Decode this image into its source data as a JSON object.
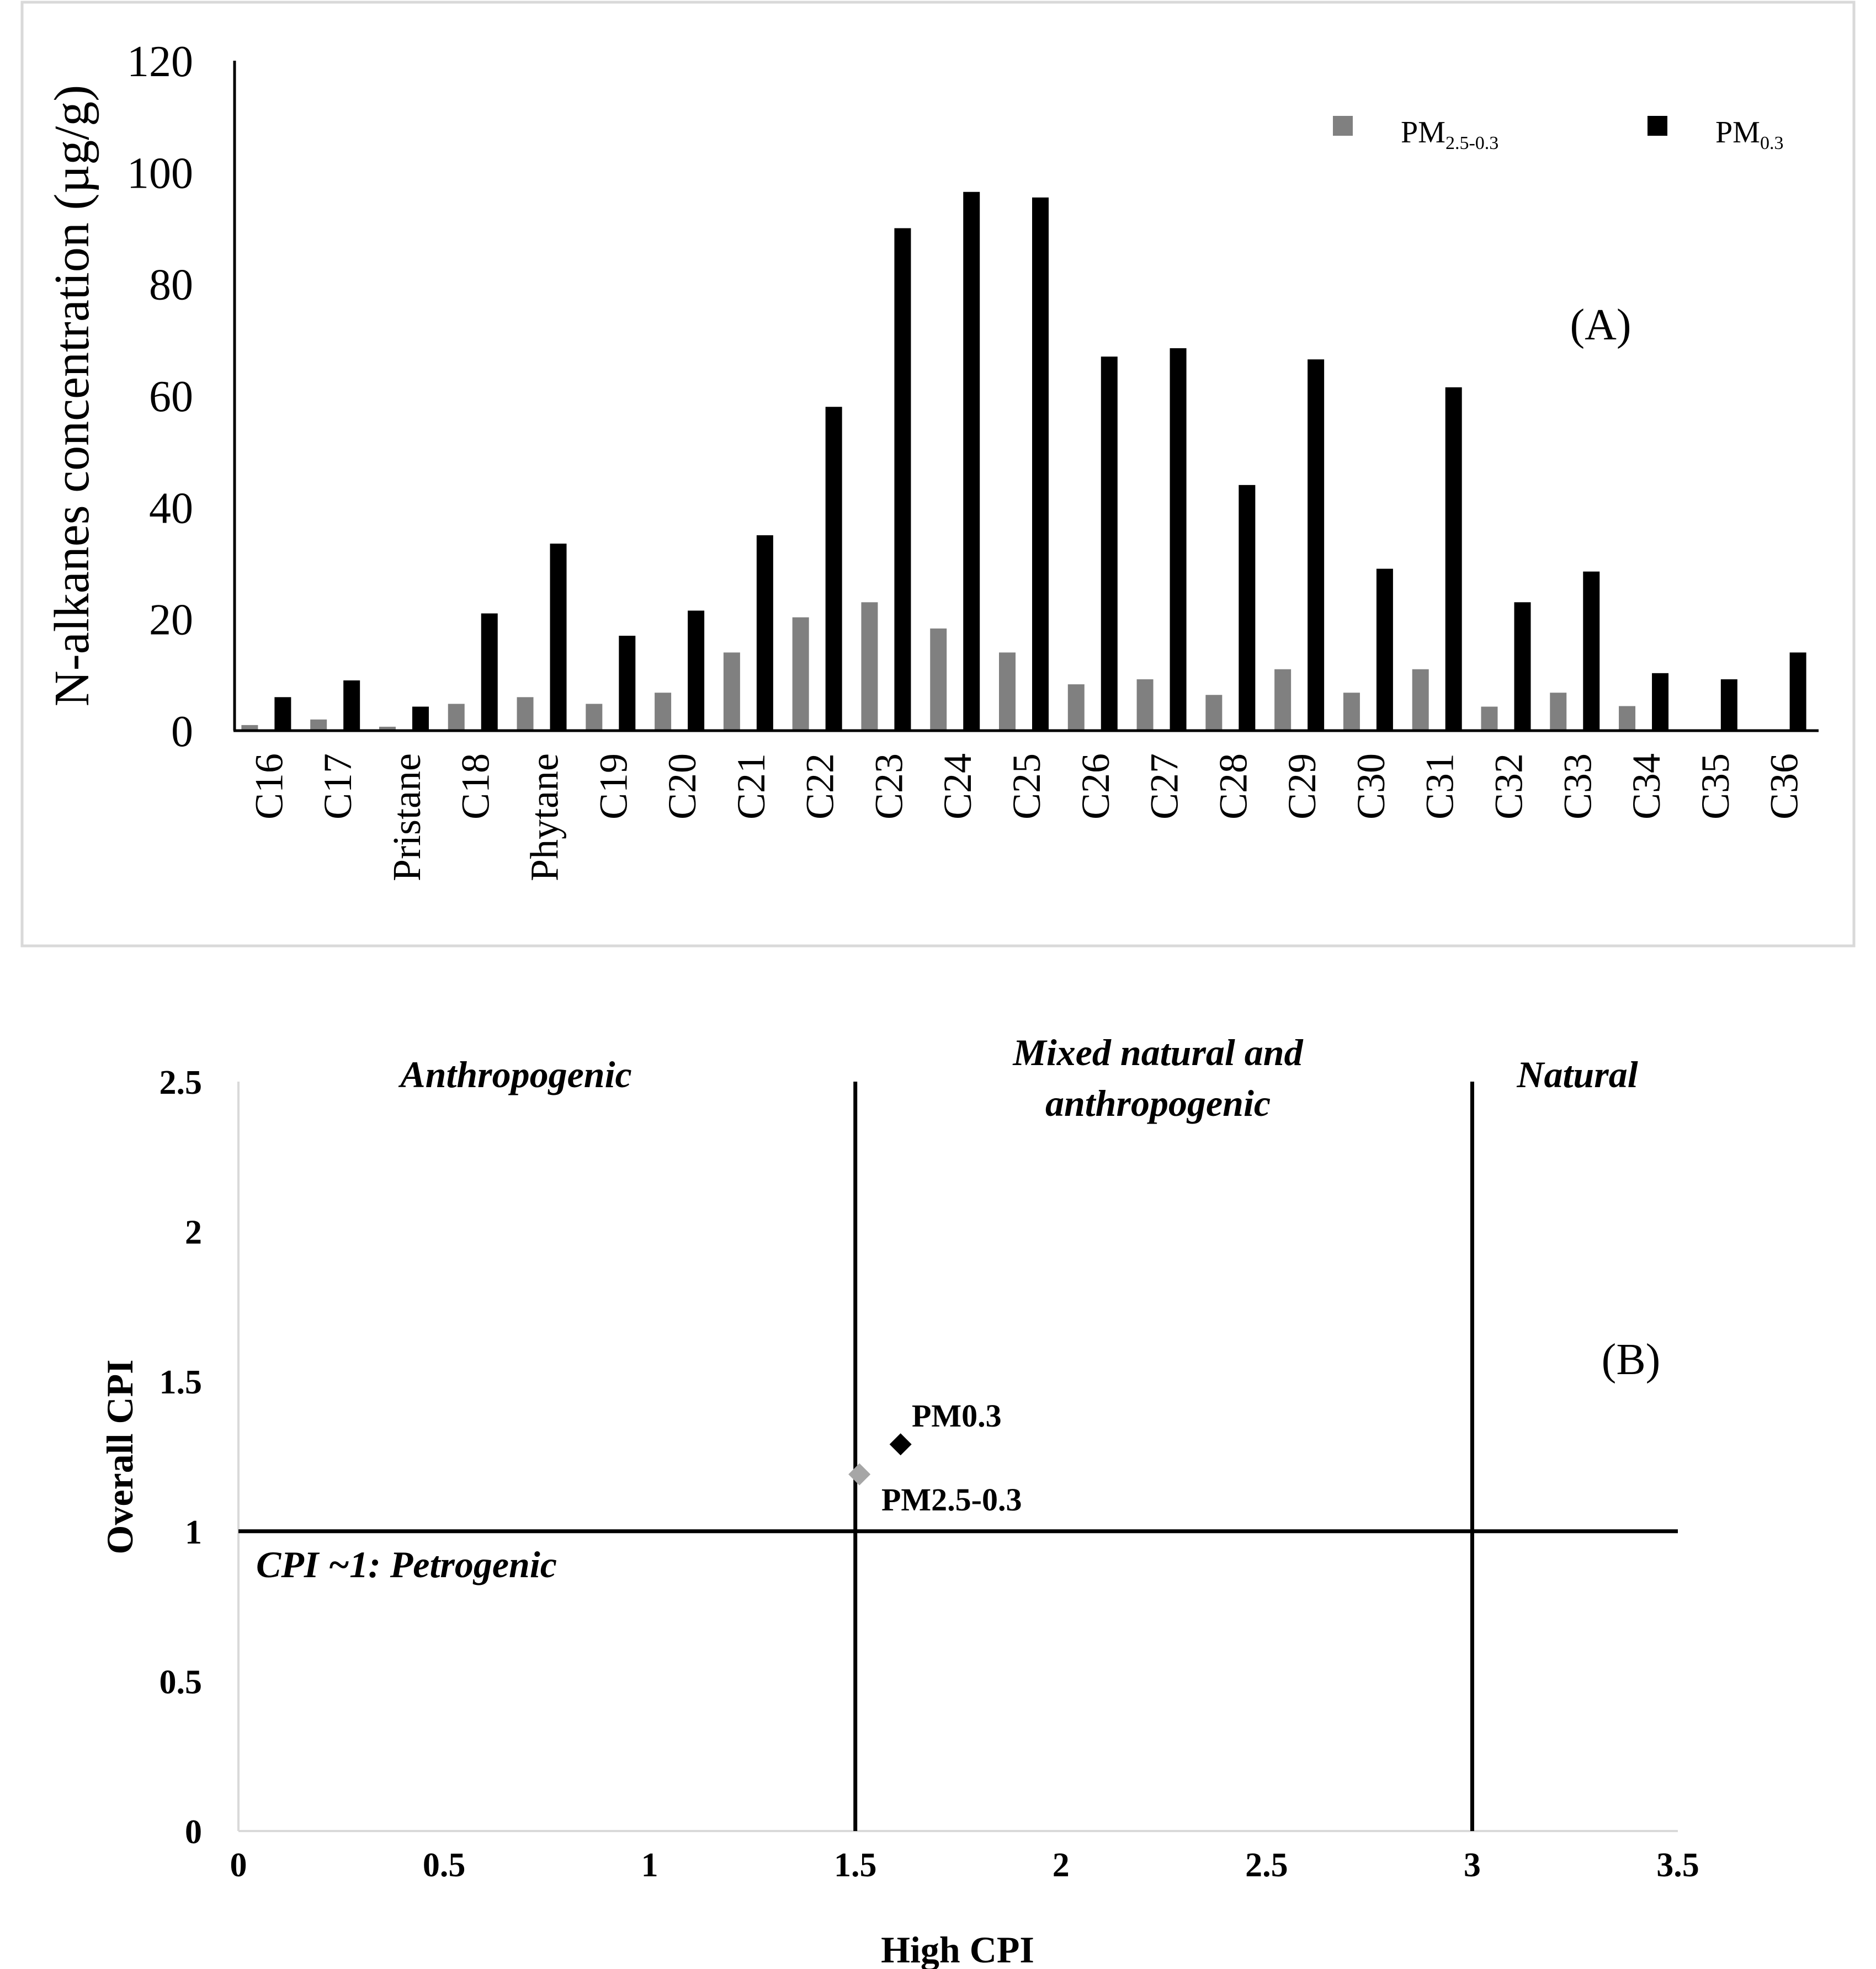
{
  "colors": {
    "pm25_03": "#808080",
    "pm03": "#000000",
    "pm25_03_marker": "#a6a6a6",
    "pm03_marker": "#000000",
    "frame": "#d9d9d9",
    "axis": "#000000"
  },
  "chart_data": [
    {
      "type": "bar",
      "panel_label": "(A)",
      "ylabel": "N-alkanes concentration (µg/g)",
      "xlabel": "",
      "ylim": [
        0,
        120
      ],
      "yticks": [
        "0",
        "20",
        "40",
        "60",
        "80",
        "100",
        "120"
      ],
      "categories": [
        "C16",
        "C17",
        "Pristane",
        "C18",
        "Phytane",
        "C19",
        "C20",
        "C21",
        "C22",
        "C23",
        "C24",
        "C25",
        "C26",
        "C27",
        "C28",
        "C29",
        "C30",
        "C31",
        "C32",
        "C33",
        "C34",
        "C35",
        "C36"
      ],
      "legend": {
        "position": "top-right",
        "items": [
          {
            "prefix": "PM",
            "subscript": "2.5-0.3"
          },
          {
            "prefix": "PM",
            "subscript": "0.3"
          }
        ]
      },
      "series": [
        {
          "name": "PM2.5-0.3",
          "values": [
            1,
            2,
            0.7,
            4.8,
            6,
            4.8,
            6.8,
            14,
            20.3,
            23,
            18.3,
            14,
            8.3,
            9.2,
            6.4,
            11,
            6.8,
            11,
            4.3,
            6.8,
            4.4,
            0,
            0
          ]
        },
        {
          "name": "PM0.3",
          "values": [
            6,
            9,
            4.3,
            21,
            33.5,
            17,
            21.5,
            35,
            58,
            90,
            96.5,
            95.5,
            67,
            68.5,
            44,
            66.5,
            29,
            61.5,
            23,
            28.5,
            10.3,
            9.2,
            14
          ]
        }
      ]
    },
    {
      "type": "scatter",
      "panel_label": "(B)",
      "xlabel": "High CPI",
      "ylabel": "Overall CPI",
      "xlim": [
        0,
        3.5
      ],
      "ylim": [
        0,
        2.5
      ],
      "xticks": [
        "0",
        "0.5",
        "1",
        "1.5",
        "2",
        "2.5",
        "3",
        "3.5"
      ],
      "yticks": [
        "0",
        "0.5",
        "1",
        "1.5",
        "2",
        "2.5"
      ],
      "reference_lines": {
        "vertical": [
          1.5,
          3
        ],
        "horizontal": [
          1
        ]
      },
      "region_labels": {
        "anthropogenic": "Anthropogenic",
        "mixed_line1": "Mixed natural and",
        "mixed_line2": "anthropogenic",
        "natural": "Natural",
        "petrogenic": "CPI ~1: Petrogenic"
      },
      "points": [
        {
          "label": "PM0.3",
          "x": 1.61,
          "y": 1.29,
          "marker": "diamond",
          "color_key": "pm03_marker"
        },
        {
          "label": "PM2.5-0.3",
          "x": 1.51,
          "y": 1.19,
          "marker": "diamond",
          "color_key": "pm25_03_marker"
        }
      ]
    }
  ]
}
